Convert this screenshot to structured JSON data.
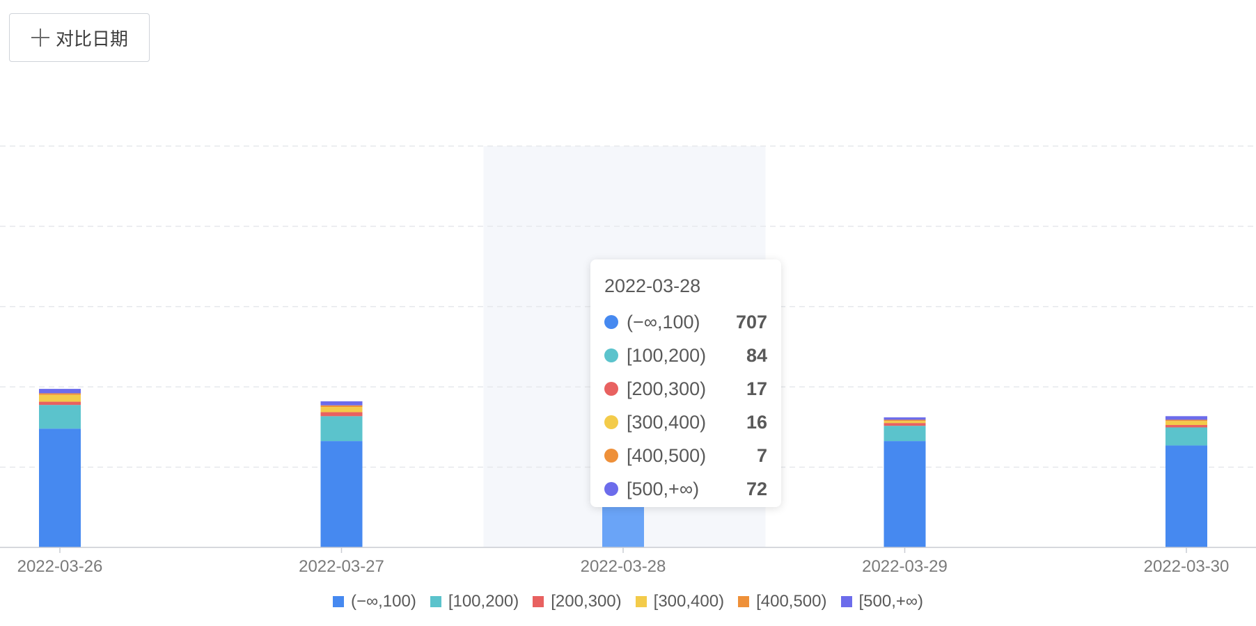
{
  "toolbar": {
    "compare_label": "对比日期",
    "compare_icon": "plus-icon"
  },
  "chart_data": {
    "type": "bar",
    "stacked": true,
    "categories": [
      "2022-03-26",
      "2022-03-27",
      "2022-03-28",
      "2022-03-29",
      "2022-03-30"
    ],
    "series": [
      {
        "name": "(−∞,100)",
        "color": "#4689f0",
        "values": [
          592,
          530,
          707,
          530,
          508
        ]
      },
      {
        "name": "[100,200)",
        "color": "#5bc3cc",
        "values": [
          118,
          124,
          84,
          76,
          90
        ]
      },
      {
        "name": "[200,300)",
        "color": "#e86160",
        "values": [
          16,
          20,
          17,
          14,
          12
        ]
      },
      {
        "name": "[300,400)",
        "color": "#f3cb4a",
        "values": [
          34,
          26,
          16,
          10,
          20
        ]
      },
      {
        "name": "[400,500)",
        "color": "#ee9039",
        "values": [
          8,
          8,
          7,
          6,
          6
        ]
      },
      {
        "name": "[500,+∞)",
        "color": "#6c6ceb",
        "values": [
          22,
          20,
          72,
          12,
          18
        ]
      }
    ],
    "ylim": [
      0,
      2000
    ],
    "grid": true,
    "highlighted_category": "2022-03-28",
    "highlight_color": "#6aa4f7",
    "legend_position": "bottom-center"
  },
  "tooltip": {
    "title": "2022-03-28",
    "rows": [
      {
        "name": "(−∞,100)",
        "value": "707",
        "color": "#4689f0"
      },
      {
        "name": "[100,200)",
        "value": "84",
        "color": "#5bc3cc"
      },
      {
        "name": "[200,300)",
        "value": "17",
        "color": "#e86160"
      },
      {
        "name": "[300,400)",
        "value": "16",
        "color": "#f3cb4a"
      },
      {
        "name": "[400,500)",
        "value": "7",
        "color": "#ee9039"
      },
      {
        "name": "[500,+∞)",
        "value": "72",
        "color": "#6c6ceb"
      }
    ]
  }
}
